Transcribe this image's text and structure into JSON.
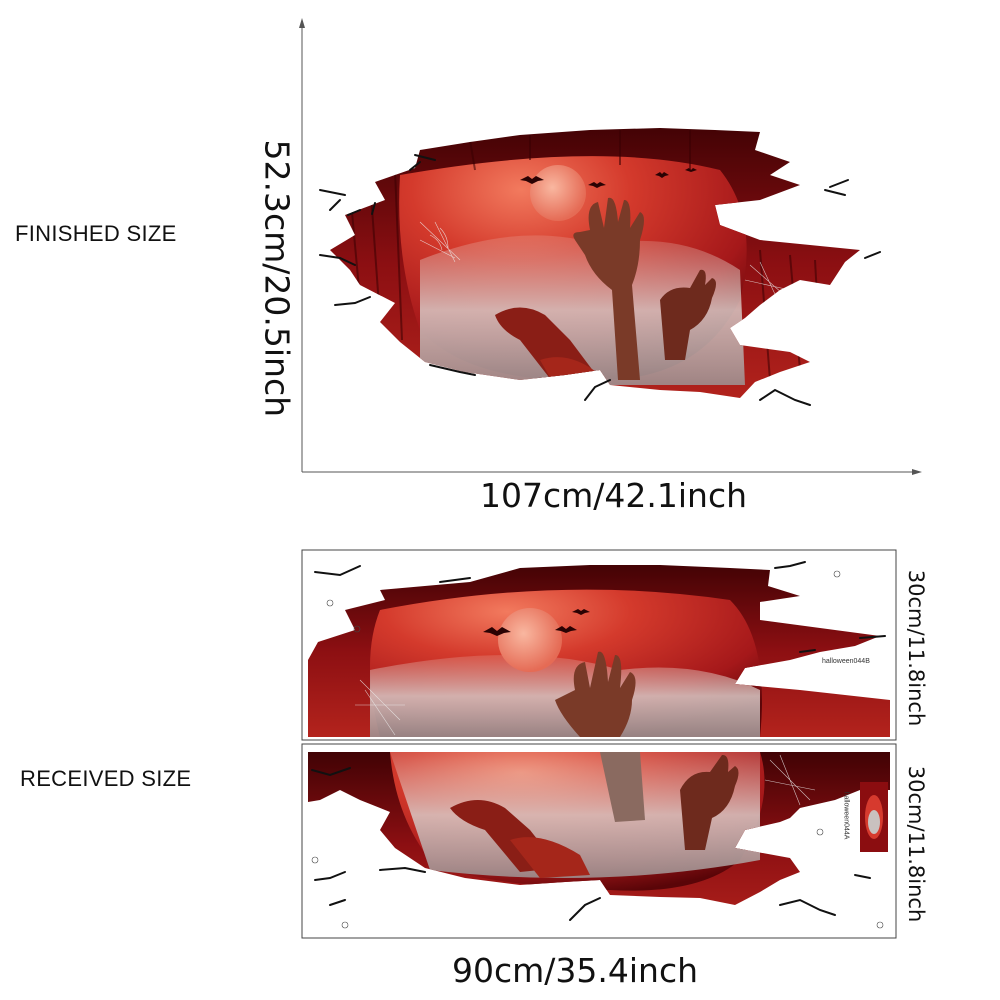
{
  "finished": {
    "label": "FINISHED SIZE",
    "height_text": "52.3cm/20.5inch",
    "width_text": "107cm/42.1inch"
  },
  "received": {
    "label": "RECEIVED SIZE",
    "width_text": "90cm/35.4inch",
    "top_sheet_height": "30cm/11.8inch",
    "bottom_sheet_height": "30cm/11.8inch",
    "top_sheet_code": "halloween044B",
    "bottom_sheet_code": "halloween044A"
  },
  "colors": {
    "blood_red": "#8b0d10",
    "dark_red": "#4a0205",
    "sky_red": "#d63a2e",
    "moon": "#f08a74",
    "fog": "#c9c1bf"
  }
}
